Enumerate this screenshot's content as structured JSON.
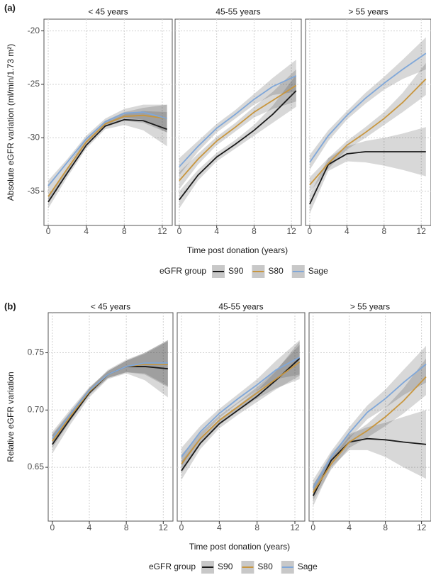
{
  "chart_data": [
    {
      "type": "line",
      "label": "(a)",
      "y_label": "Absolute eGFR variation (ml/min/1.73 m²)",
      "x_label": "Time post donation (years)",
      "legend_title": "eGFR group",
      "x": [
        0,
        2,
        4,
        6,
        8,
        10,
        12.5
      ],
      "xlim": [
        -0.45,
        13.05
      ],
      "xticks": [
        0,
        4,
        8,
        12
      ],
      "ylim": [
        -38.2,
        -18.9
      ],
      "yticks": [
        -20,
        -25,
        -30,
        -35
      ],
      "grid": true,
      "facets": [
        {
          "title": "< 45 years",
          "series": [
            {
              "name": "S90",
              "color": "#1a1a1a",
              "values": [
                -36,
                -33.3,
                -30.7,
                -28.9,
                -28.3,
                -28.4,
                -29.2
              ],
              "lower": [
                -36.6,
                -33.7,
                -31.0,
                -29.2,
                -28.8,
                -29.3,
                -30.8
              ],
              "upper": [
                -35.4,
                -32.9,
                -30.4,
                -28.6,
                -27.8,
                -27.5,
                -27.6
              ]
            },
            {
              "name": "S80",
              "color": "#c8963e",
              "values": [
                -35.5,
                -32.9,
                -30.4,
                -28.7,
                -28.0,
                -27.9,
                -28.2
              ],
              "lower": [
                -36.0,
                -33.2,
                -30.7,
                -29.0,
                -28.4,
                -28.6,
                -29.5
              ],
              "upper": [
                -35.0,
                -32.6,
                -30.1,
                -28.4,
                -27.6,
                -27.2,
                -26.9
              ]
            },
            {
              "name": "Sage",
              "color": "#7fa7d9",
              "values": [
                -34.5,
                -32.3,
                -30.1,
                -28.5,
                -27.7,
                -27.6,
                -28.2
              ],
              "lower": [
                -35.0,
                -32.6,
                -30.4,
                -28.8,
                -28.1,
                -28.3,
                -29.5
              ],
              "upper": [
                -34.0,
                -32.0,
                -29.8,
                -28.2,
                -27.3,
                -26.9,
                -26.9
              ]
            }
          ]
        },
        {
          "title": "45-55 years",
          "series": [
            {
              "name": "S90",
              "color": "#1a1a1a",
              "values": [
                -35.8,
                -33.5,
                -31.8,
                -30.6,
                -29.3,
                -27.8,
                -25.6
              ],
              "lower": [
                -36.6,
                -34.0,
                -32.2,
                -31.0,
                -29.8,
                -28.6,
                -27.1
              ],
              "upper": [
                -35.0,
                -33.0,
                -31.4,
                -30.2,
                -28.8,
                -27.0,
                -24.1
              ]
            },
            {
              "name": "S80",
              "color": "#c8963e",
              "values": [
                -34,
                -32,
                -30.3,
                -29,
                -27.6,
                -26.5,
                -25.1
              ],
              "lower": [
                -34.8,
                -32.5,
                -30.7,
                -29.4,
                -28.1,
                -27.3,
                -26.6
              ],
              "upper": [
                -33.2,
                -31.5,
                -29.9,
                -28.6,
                -27.1,
                -25.7,
                -23.6
              ]
            },
            {
              "name": "Sage",
              "color": "#7fa7d9",
              "values": [
                -32.7,
                -30.8,
                -29.1,
                -27.8,
                -26.4,
                -25.2,
                -24.2
              ],
              "lower": [
                -33.5,
                -31.3,
                -29.5,
                -28.2,
                -26.9,
                -26.0,
                -25.7
              ],
              "upper": [
                -31.9,
                -30.3,
                -28.7,
                -27.4,
                -25.9,
                -24.4,
                -22.7
              ]
            }
          ]
        },
        {
          "title": "> 55 years",
          "series": [
            {
              "name": "S90",
              "color": "#1a1a1a",
              "values": [
                -36.2,
                -32.5,
                -31.5,
                -31.3,
                -31.3,
                -31.3,
                -31.3
              ],
              "lower": [
                -37.1,
                -33.1,
                -32.2,
                -32.3,
                -32.6,
                -33.0,
                -33.6
              ],
              "upper": [
                -35.3,
                -31.9,
                -30.8,
                -30.3,
                -30.0,
                -29.6,
                -29.0
              ]
            },
            {
              "name": "S80",
              "color": "#c8963e",
              "values": [
                -34.4,
                -32.4,
                -30.7,
                -29.5,
                -28.2,
                -26.7,
                -24.5
              ],
              "lower": [
                -35.1,
                -32.9,
                -31.1,
                -30.0,
                -28.8,
                -27.6,
                -26.0
              ],
              "upper": [
                -33.7,
                -31.9,
                -30.3,
                -29.0,
                -27.6,
                -25.8,
                -23.0
              ]
            },
            {
              "name": "Sage",
              "color": "#7fa7d9",
              "values": [
                -32.3,
                -29.8,
                -27.9,
                -26.3,
                -24.9,
                -23.6,
                -22.1
              ],
              "lower": [
                -33.0,
                -30.3,
                -28.3,
                -26.8,
                -25.5,
                -24.5,
                -23.6
              ],
              "upper": [
                -31.6,
                -29.3,
                -27.5,
                -25.8,
                -24.3,
                -22.7,
                -20.6
              ]
            }
          ]
        }
      ]
    },
    {
      "type": "line",
      "label": "(b)",
      "y_label": "Relative eGFR variation",
      "x_label": "Time post donation (years)",
      "legend_title": "eGFR group",
      "x": [
        0,
        2,
        4,
        6,
        8,
        10,
        12.5
      ],
      "xlim": [
        -0.45,
        13.05
      ],
      "xticks": [
        0,
        4,
        8,
        12
      ],
      "ylim": [
        0.603,
        0.785
      ],
      "yticks": [
        0.65,
        {
          "value": 0.7,
          "label": "0.70"
        },
        0.75
      ],
      "grid": true,
      "facets": [
        {
          "title": "< 45 years",
          "series": [
            {
              "name": "S90",
              "color": "#1a1a1a",
              "values": [
                0.67,
                0.693,
                0.715,
                0.731,
                0.738,
                0.738,
                0.736
              ],
              "lower": [
                0.662,
                0.688,
                0.711,
                0.727,
                0.732,
                0.726,
                0.711
              ],
              "upper": [
                0.678,
                0.698,
                0.719,
                0.735,
                0.744,
                0.75,
                0.761
              ]
            },
            {
              "name": "S80",
              "color": "#c8963e",
              "values": [
                0.673,
                0.695,
                0.716,
                0.731,
                0.738,
                0.74,
                0.74
              ],
              "lower": [
                0.667,
                0.691,
                0.713,
                0.728,
                0.733,
                0.731,
                0.72
              ],
              "upper": [
                0.679,
                0.699,
                0.719,
                0.734,
                0.743,
                0.749,
                0.76
              ]
            },
            {
              "name": "Sage",
              "color": "#7fa7d9",
              "values": [
                0.675,
                0.697,
                0.717,
                0.731,
                0.738,
                0.741,
                0.741
              ],
              "lower": [
                0.669,
                0.693,
                0.714,
                0.728,
                0.733,
                0.732,
                0.721
              ],
              "upper": [
                0.681,
                0.701,
                0.72,
                0.734,
                0.743,
                0.75,
                0.761
              ]
            }
          ]
        },
        {
          "title": "45-55 years",
          "series": [
            {
              "name": "S90",
              "color": "#1a1a1a",
              "values": [
                0.647,
                0.671,
                0.688,
                0.7,
                0.712,
                0.726,
                0.745
              ],
              "lower": [
                0.639,
                0.666,
                0.684,
                0.696,
                0.707,
                0.718,
                0.73
              ],
              "upper": [
                0.655,
                0.676,
                0.692,
                0.704,
                0.717,
                0.734,
                0.76
              ]
            },
            {
              "name": "S80",
              "color": "#c8963e",
              "values": [
                0.653,
                0.675,
                0.691,
                0.703,
                0.715,
                0.727,
                0.742
              ],
              "lower": [
                0.645,
                0.67,
                0.687,
                0.699,
                0.71,
                0.719,
                0.727
              ],
              "upper": [
                0.661,
                0.68,
                0.695,
                0.707,
                0.72,
                0.735,
                0.757
              ]
            },
            {
              "name": "Sage",
              "color": "#7fa7d9",
              "values": [
                0.659,
                0.681,
                0.697,
                0.71,
                0.722,
                0.735,
                0.746
              ],
              "lower": [
                0.651,
                0.676,
                0.693,
                0.706,
                0.717,
                0.727,
                0.731
              ],
              "upper": [
                0.667,
                0.686,
                0.701,
                0.714,
                0.727,
                0.743,
                0.761
              ]
            }
          ]
        },
        {
          "title": "> 55 years",
          "series": [
            {
              "name": "S90",
              "color": "#1a1a1a",
              "values": [
                0.625,
                0.656,
                0.672,
                0.675,
                0.674,
                0.672,
                0.67
              ],
              "lower": [
                0.616,
                0.65,
                0.665,
                0.665,
                0.659,
                0.65,
                0.64
              ],
              "upper": [
                0.634,
                0.662,
                0.679,
                0.685,
                0.689,
                0.694,
                0.7
              ]
            },
            {
              "name": "S80",
              "color": "#c8963e",
              "values": [
                0.628,
                0.653,
                0.672,
                0.682,
                0.694,
                0.708,
                0.729
              ],
              "lower": [
                0.621,
                0.648,
                0.667,
                0.676,
                0.686,
                0.697,
                0.713
              ],
              "upper": [
                0.635,
                0.658,
                0.677,
                0.688,
                0.702,
                0.719,
                0.745
              ]
            },
            {
              "name": "Sage",
              "color": "#7fa7d9",
              "values": [
                0.632,
                0.659,
                0.68,
                0.698,
                0.71,
                0.724,
                0.74
              ],
              "lower": [
                0.625,
                0.654,
                0.675,
                0.692,
                0.702,
                0.713,
                0.724
              ],
              "upper": [
                0.639,
                0.664,
                0.685,
                0.704,
                0.718,
                0.735,
                0.756
              ]
            }
          ]
        }
      ]
    }
  ]
}
